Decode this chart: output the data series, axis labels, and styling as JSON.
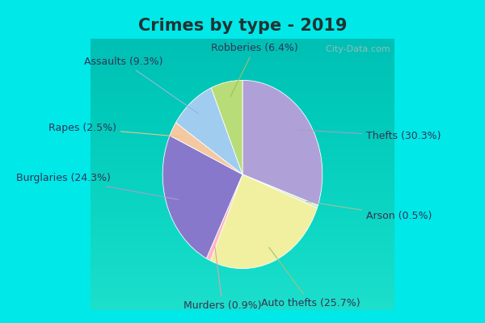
{
  "title": "Crimes by type - 2019",
  "fig_bg_color": "#00e8e8",
  "plot_bg_color_gradient": [
    "#c8e8d8",
    "#d8eee0",
    "#e8f4ec"
  ],
  "labels": [
    "Thefts",
    "Arson",
    "Auto thefts",
    "Murders",
    "Burglaries",
    "Rapes",
    "Assaults",
    "Robberies"
  ],
  "values": [
    30.3,
    0.5,
    25.7,
    0.9,
    24.3,
    2.5,
    9.3,
    6.4
  ],
  "colors": [
    "#b0a0d8",
    "#d8e8c8",
    "#f0f0a0",
    "#ffb8c0",
    "#8878cc",
    "#f4c8a0",
    "#a0ccf0",
    "#b8dc78"
  ],
  "label_texts": [
    "Thefts (30.3%)",
    "Arson (0.5%)",
    "Auto thefts (25.7%)",
    "Murders (0.9%)",
    "Burglaries (24.3%)",
    "Rapes (2.5%)",
    "Assaults (9.3%)",
    "Robberies (6.4%)"
  ],
  "watermark": "  City-Data.com",
  "title_fontsize": 15,
  "label_fontsize": 9,
  "startangle": 90
}
